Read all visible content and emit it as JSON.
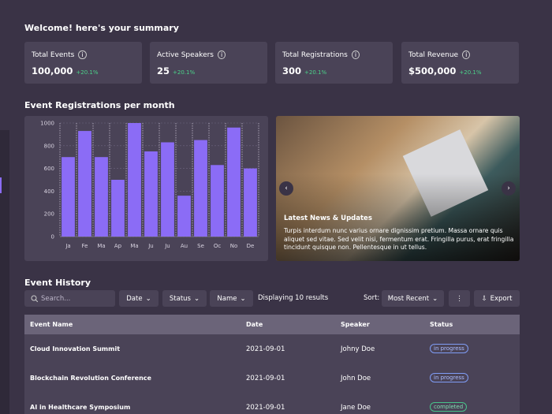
{
  "header": {
    "title": "Welcome! here's your summary"
  },
  "stats": [
    {
      "label": "Total Events",
      "value": "100,000",
      "change": "+20.1%"
    },
    {
      "label": "Active Speakers",
      "value": "25",
      "change": "+20.1%"
    },
    {
      "label": "Total Registrations",
      "value": "300",
      "change": "+20.1%"
    },
    {
      "label": "Total Revenue",
      "value": "$500,000",
      "change": "+20.1%"
    }
  ],
  "chart": {
    "type": "bar",
    "title": "Event Registrations per month",
    "categories": [
      "Ja",
      "Fe",
      "Ma",
      "Ap",
      "Ma",
      "Ju",
      "Ju",
      "Au",
      "Se",
      "Oc",
      "No",
      "De"
    ],
    "values": [
      700,
      930,
      700,
      500,
      1000,
      750,
      830,
      360,
      850,
      630,
      960,
      600
    ],
    "ylim": [
      0,
      1000
    ],
    "yticks": [
      0,
      200,
      400,
      600,
      800,
      1000
    ],
    "color": "#8b6cf6",
    "grid": true
  },
  "news": {
    "title": "Latest News & Updates",
    "body": "Turpis interdum nunc varius ornare dignissim pretium. Massa ornare quis aliquet sed vitae. Sed velit nisi, fermentum erat. Fringilla purus, erat fringilla tincidunt quisque non. Pellentesque in ut tellus."
  },
  "history": {
    "title": "Event History",
    "search_placeholder": "Search...",
    "filters": [
      "Date",
      "Status",
      "Name"
    ],
    "results": "Displaying 10 results",
    "sort_label": "Sort:",
    "sort": "Most Recent",
    "export": "Export",
    "table": {
      "columns": [
        "Event Name",
        "Date",
        "Speaker",
        "Status"
      ],
      "rows": [
        [
          "Cloud Innovation Summit",
          "2021-09-01",
          "Johny Doe",
          "in progress"
        ],
        [
          "Blockchain Revolution Conference",
          "2021-09-01",
          "John Doe",
          "in progress"
        ],
        [
          "AI in Healthcare Symposium",
          "2021-09-01",
          "Jane Doe",
          "completed"
        ]
      ]
    }
  }
}
